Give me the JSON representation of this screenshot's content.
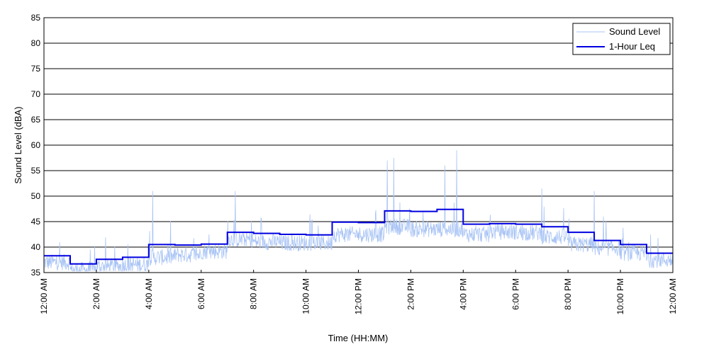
{
  "chart_data": {
    "type": "line",
    "title": "",
    "xlabel": "Time (HH:MM)",
    "ylabel": "Sound Level (dBA)",
    "xlim": [
      0,
      24
    ],
    "ylim": [
      35,
      85
    ],
    "yticks": [
      "35",
      "40",
      "45",
      "50",
      "55",
      "60",
      "65",
      "70",
      "75",
      "80",
      "85"
    ],
    "xticks": [
      {
        "hour": 0,
        "label": "12:00 AM"
      },
      {
        "hour": 2,
        "label": "2:00 AM"
      },
      {
        "hour": 4,
        "label": "4:00 AM"
      },
      {
        "hour": 6,
        "label": "6:00 AM"
      },
      {
        "hour": 8,
        "label": "8:00 AM"
      },
      {
        "hour": 10,
        "label": "10:00 AM"
      },
      {
        "hour": 12,
        "label": "12:00 PM"
      },
      {
        "hour": 14,
        "label": "2:00 PM"
      },
      {
        "hour": 16,
        "label": "4:00 PM"
      },
      {
        "hour": 18,
        "label": "6:00 PM"
      },
      {
        "hour": 20,
        "label": "8:00 PM"
      },
      {
        "hour": 22,
        "label": "10:00 PM"
      },
      {
        "hour": 24,
        "label": "12:00 AM"
      }
    ],
    "grid": "horizontal",
    "legend_position": "top-right",
    "series": [
      {
        "name": "Sound Level",
        "color": "#a9c4f5",
        "hourly_baseline": [
          37,
          35.5,
          36.2,
          36.5,
          38,
          38.5,
          39.2,
          41.5,
          41,
          40.8,
          40.8,
          42.5,
          42.5,
          44,
          43.5,
          43.5,
          42.5,
          43,
          42.8,
          42,
          40.5,
          39.8,
          38.8,
          37.5
        ],
        "notable_peaks": [
          {
            "hour": 4.15,
            "value": 51
          },
          {
            "hour": 7.3,
            "value": 51
          },
          {
            "hour": 13.1,
            "value": 57
          },
          {
            "hour": 13.35,
            "value": 57.5
          },
          {
            "hour": 15.3,
            "value": 56
          },
          {
            "hour": 15.75,
            "value": 59
          },
          {
            "hour": 19.0,
            "value": 51.5
          },
          {
            "hour": 21.0,
            "value": 51
          }
        ]
      },
      {
        "name": "1-Hour Leq",
        "color": "#0000e0",
        "step_values": [
          38.3,
          36.7,
          37.6,
          38.0,
          40.5,
          40.4,
          40.6,
          42.9,
          42.7,
          42.5,
          42.4,
          44.9,
          44.8,
          47.1,
          47.0,
          47.4,
          44.5,
          44.6,
          44.5,
          44.0,
          42.9,
          41.3,
          40.5,
          38.8
        ]
      }
    ]
  },
  "colors": {
    "background": "#ffffff",
    "grid": "#000000",
    "axes": "#000000"
  }
}
